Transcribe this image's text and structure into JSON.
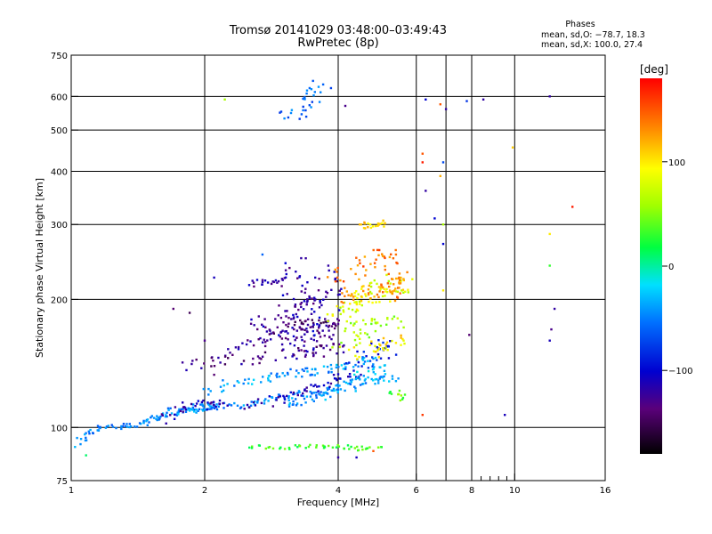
{
  "header": {
    "title": "Tromsø 20141029 03:48:00–03:49:43",
    "subtitle": "RwPretec (8p)"
  },
  "stats": {
    "heading": "Phases",
    "line_o": "mean, sd,O: −78.7, 18.3",
    "line_x": "mean, sd,X: 100.0, 27.4"
  },
  "colorbar": {
    "unit": "[deg]",
    "ticks": [
      "100",
      "0",
      "−100"
    ],
    "tick_values": [
      100,
      0,
      -100
    ],
    "range": [
      -180,
      180
    ]
  },
  "chart_data": {
    "type": "scatter",
    "title": "Tromsø 20141029 03:48:00–03:49:43",
    "subtitle": "RwPretec (8p)",
    "xlabel": "Frequency [MHz]",
    "ylabel": "Stationary phase Virtual Height [km]",
    "xscale": "log",
    "yscale": "log",
    "xlim": [
      1,
      16
    ],
    "ylim": [
      75,
      750
    ],
    "xticks": [
      1,
      2,
      4,
      6,
      8,
      10,
      16
    ],
    "xtick_labels": [
      "1",
      "2",
      "4",
      "6",
      "8",
      "10",
      "16"
    ],
    "xgrid": [
      2,
      4,
      6,
      7,
      8,
      10
    ],
    "xminor": [
      8.4,
      8.8,
      9.2,
      9.6
    ],
    "yticks": [
      75,
      100,
      200,
      300,
      400,
      500,
      600,
      750
    ],
    "ytick_labels": [
      "75",
      "100",
      "200",
      "300",
      "400",
      "500",
      "600",
      "750"
    ],
    "ygrid": [
      100,
      200,
      300,
      400,
      500,
      600
    ],
    "grid": true,
    "color_quantity": "phase [deg]",
    "traces": [
      {
        "f": [
          1.04,
          1.1,
          1.18,
          1.3,
          1.42,
          1.55,
          1.7,
          1.85,
          2.0,
          2.15
        ],
        "h": [
          92,
          98,
          101,
          100,
          101,
          105,
          110,
          111,
          112,
          112
        ],
        "phase": -50,
        "jitter": 3
      },
      {
        "f": [
          1.5,
          1.7,
          1.9,
          2.1,
          2.4,
          2.7,
          3.0,
          3.4,
          3.8,
          4.0
        ],
        "h": [
          104,
          108,
          110,
          112,
          113,
          115,
          118,
          120,
          122,
          125
        ],
        "phase": -45,
        "jitter": 3
      },
      {
        "f": [
          1.6,
          1.8,
          2.0,
          2.2
        ],
        "h": [
          104,
          112,
          113,
          114
        ],
        "phase": -120,
        "jitter": 4
      },
      {
        "f": [
          2.0,
          2.3,
          2.7,
          3.0,
          3.3,
          3.6,
          4.0,
          4.4,
          4.8
        ],
        "h": [
          122,
          127,
          130,
          133,
          135,
          136,
          138,
          142,
          145
        ],
        "phase": -40,
        "jitter": 4
      },
      {
        "f": [
          2.5,
          2.9,
          3.2,
          3.6,
          4.0,
          4.5
        ],
        "h": [
          112,
          116,
          120,
          125,
          130,
          133
        ],
        "phase": -110,
        "jitter": 4
      },
      {
        "f": [
          3.0,
          3.3,
          3.7,
          4.0,
          4.5,
          5.0,
          5.3
        ],
        "h": [
          113,
          115,
          118,
          122,
          128,
          130,
          132
        ],
        "phase": -40,
        "jitter": 4
      },
      {
        "f": [
          1.8,
          2.1,
          2.5,
          3.0,
          3.4,
          3.8,
          4.1
        ],
        "h": [
          140,
          143,
          145,
          148,
          150,
          152,
          155
        ],
        "phase": -130,
        "jitter": 5
      },
      {
        "f": [
          2.2,
          2.6,
          3.0,
          3.5,
          3.9
        ],
        "h": [
          150,
          158,
          160,
          163,
          165
        ],
        "phase": -125,
        "jitter": 4
      },
      {
        "f": [
          2.7,
          3.0,
          3.3,
          3.7,
          4.0
        ],
        "h": [
          168,
          170,
          172,
          173,
          175
        ],
        "phase": -130,
        "jitter": 4
      },
      {
        "f": [
          3.2,
          3.5,
          3.8
        ],
        "h": [
          174,
          176,
          178
        ],
        "phase": -140,
        "jitter": 4
      },
      {
        "f": [
          2.5,
          2.9,
          3.3,
          3.6,
          4.0
        ],
        "h": [
          170,
          182,
          192,
          200,
          205
        ],
        "phase": -120,
        "jitter": 6
      },
      {
        "f": [
          2.5,
          2.8,
          3.0
        ],
        "h": [
          218,
          220,
          222
        ],
        "phase": -120,
        "jitter": 3
      },
      {
        "f": [
          3.0,
          3.1,
          3.2,
          3.3
        ],
        "h": [
          160,
          185,
          215,
          250
        ],
        "phase": -120,
        "jitter": 8
      },
      {
        "f": [
          3.35,
          3.45,
          3.55
        ],
        "h": [
          150,
          185,
          225
        ],
        "phase": -110,
        "jitter": 8
      },
      {
        "f": [
          3.7,
          3.75,
          3.8
        ],
        "h": [
          150,
          195,
          240
        ],
        "phase": -120,
        "jitter": 10
      },
      {
        "f": [
          4.0,
          4.2,
          4.4,
          4.6,
          4.8,
          5.0,
          5.3,
          5.5
        ],
        "h": [
          185,
          190,
          195,
          200,
          205,
          210,
          215,
          220
        ],
        "phase": 80,
        "jitter": 8
      },
      {
        "f": [
          4.1,
          4.4,
          4.7,
          5.0,
          5.3
        ],
        "h": [
          160,
          165,
          170,
          175,
          180
        ],
        "phase": 60,
        "jitter": 8
      },
      {
        "f": [
          4.3,
          4.6,
          4.9,
          5.2
        ],
        "h": [
          140,
          145,
          150,
          155
        ],
        "phase": -90,
        "jitter": 8
      },
      {
        "f": [
          4.5,
          4.8,
          5.1,
          5.4
        ],
        "h": [
          150,
          152,
          155,
          158
        ],
        "phase": 100,
        "jitter": 8
      },
      {
        "f": [
          4.2,
          4.5,
          4.8,
          5.1
        ],
        "h": [
          125,
          130,
          135,
          140
        ],
        "phase": -30,
        "jitter": 6
      },
      {
        "f": [
          4.0,
          4.3,
          4.6,
          5.0,
          5.4
        ],
        "h": [
          220,
          230,
          240,
          250,
          255
        ],
        "phase": 140,
        "jitter": 8
      },
      {
        "f": [
          4.0,
          4.4,
          4.8,
          5.2,
          5.5
        ],
        "h": [
          200,
          205,
          210,
          215,
          218
        ],
        "phase": 130,
        "jitter": 6
      },
      {
        "f": [
          4.5,
          4.8,
          5.1
        ],
        "h": [
          298,
          300,
          302
        ],
        "phase": 110,
        "jitter": 3
      },
      {
        "f": [
          5.3,
          5.4,
          5.5
        ],
        "h": [
          200,
          215,
          230
        ],
        "phase": 130,
        "jitter": 5
      },
      {
        "f": [
          5.4,
          5.5
        ],
        "h": [
          118,
          122
        ],
        "phase": 40,
        "jitter": 4
      },
      {
        "f": [
          3.1,
          3.3,
          3.5,
          3.7
        ],
        "h": [
          530,
          570,
          600,
          640
        ],
        "phase": -60,
        "jitter": 6
      },
      {
        "f": [
          2.5,
          3.0,
          3.5,
          4.0,
          4.5,
          5.0
        ],
        "h": [
          90,
          90,
          90,
          90,
          89,
          90
        ],
        "phase": 30,
        "jitter": 2
      }
    ],
    "points": [
      {
        "f": 2.22,
        "h": 590,
        "phase": 60
      },
      {
        "f": 4.15,
        "h": 570,
        "phase": -130
      },
      {
        "f": 6.3,
        "h": 590,
        "phase": -100
      },
      {
        "f": 6.8,
        "h": 575,
        "phase": 150
      },
      {
        "f": 7.0,
        "h": 560,
        "phase": -120
      },
      {
        "f": 7.8,
        "h": 585,
        "phase": -80
      },
      {
        "f": 8.5,
        "h": 590,
        "phase": -120
      },
      {
        "f": 12.0,
        "h": 600,
        "phase": -120
      },
      {
        "f": 6.2,
        "h": 440,
        "phase": 150
      },
      {
        "f": 6.2,
        "h": 420,
        "phase": 170
      },
      {
        "f": 6.9,
        "h": 420,
        "phase": -70
      },
      {
        "f": 9.9,
        "h": 455,
        "phase": 110
      },
      {
        "f": 6.8,
        "h": 390,
        "phase": 120
      },
      {
        "f": 6.3,
        "h": 360,
        "phase": -120
      },
      {
        "f": 6.6,
        "h": 310,
        "phase": -100
      },
      {
        "f": 6.9,
        "h": 300,
        "phase": 60
      },
      {
        "f": 6.9,
        "h": 270,
        "phase": -100
      },
      {
        "f": 6.9,
        "h": 210,
        "phase": 100
      },
      {
        "f": 13.5,
        "h": 330,
        "phase": 170
      },
      {
        "f": 12.0,
        "h": 285,
        "phase": 100
      },
      {
        "f": 12.0,
        "h": 240,
        "phase": 30
      },
      {
        "f": 12.3,
        "h": 190,
        "phase": -120
      },
      {
        "f": 12.0,
        "h": 160,
        "phase": -110
      },
      {
        "f": 12.1,
        "h": 170,
        "phase": -130
      },
      {
        "f": 7.9,
        "h": 165,
        "phase": -140
      },
      {
        "f": 9.5,
        "h": 107,
        "phase": -110
      },
      {
        "f": 6.2,
        "h": 107,
        "phase": 160
      },
      {
        "f": 2.1,
        "h": 225,
        "phase": -110
      },
      {
        "f": 1.02,
        "h": 90,
        "phase": -30
      },
      {
        "f": 1.08,
        "h": 86,
        "phase": 10
      },
      {
        "f": 2.7,
        "h": 255,
        "phase": -60
      },
      {
        "f": 1.7,
        "h": 190,
        "phase": -140
      },
      {
        "f": 1.85,
        "h": 186,
        "phase": -150
      },
      {
        "f": 2.0,
        "h": 160,
        "phase": -130
      },
      {
        "f": 2.1,
        "h": 133,
        "phase": -140
      },
      {
        "f": 4.0,
        "h": 85,
        "phase": -120
      },
      {
        "f": 4.4,
        "h": 85,
        "phase": -110
      },
      {
        "f": 4.8,
        "h": 88,
        "phase": 150
      }
    ]
  }
}
